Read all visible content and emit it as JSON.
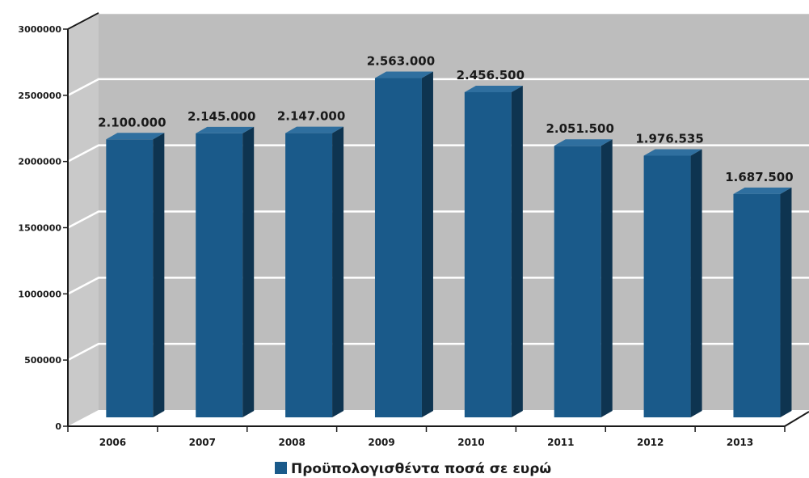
{
  "chart_data": {
    "type": "bar",
    "categories": [
      "2006",
      "2007",
      "2008",
      "2009",
      "2010",
      "2011",
      "2012",
      "2013"
    ],
    "series": [
      {
        "name": "Προϋπολογισθέντα ποσά σε ευρώ",
        "values": [
          2100000,
          2145000,
          2147000,
          2563000,
          2456500,
          2051500,
          1976535,
          1687500
        ],
        "labels": [
          "2.100.000",
          "2.145.000",
          "2.147.000",
          "2.563.000",
          "2.456.500",
          "2.051.500",
          "1.976.535",
          "1.687.500"
        ]
      }
    ],
    "yticks": [
      "0",
      "500000",
      "1000000",
      "1500000",
      "2000000",
      "2500000",
      "3000000"
    ],
    "ylim": [
      0,
      3000000
    ],
    "grid": true,
    "legend_position": "bottom-center",
    "colors": {
      "bar_front": "#1a5a8a",
      "bar_side": "#0e3450",
      "bar_top": "#2f6f9f",
      "wall": "#bdbdbd",
      "floor": "#ffffff",
      "gridline": "#ffffff"
    }
  }
}
